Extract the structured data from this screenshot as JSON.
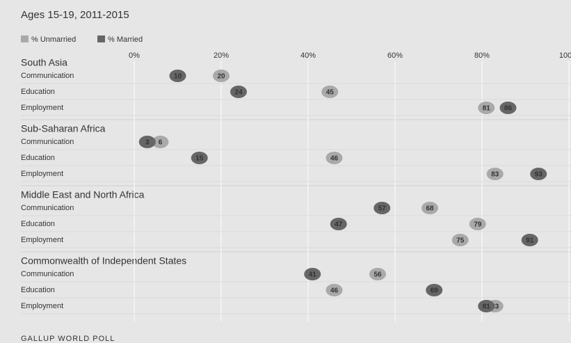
{
  "chart_data": {
    "type": "dot",
    "title": "Ages 15-19, 2011-2015",
    "source": "GALLUP WORLD POLL",
    "xlim": [
      0,
      100
    ],
    "xticks": [
      {
        "value": 0,
        "label": "0%"
      },
      {
        "value": 20,
        "label": "20%"
      },
      {
        "value": 40,
        "label": "40%"
      },
      {
        "value": 60,
        "label": "60%"
      },
      {
        "value": 80,
        "label": "80%"
      },
      {
        "value": 100,
        "label": "100%"
      }
    ],
    "grid": true,
    "groups": [
      {
        "name": "South Asia",
        "categories": [
          "Communication",
          "Education",
          "Employment"
        ]
      },
      {
        "name": "Sub-Saharan Africa",
        "categories": [
          "Communication",
          "Education",
          "Employment"
        ]
      },
      {
        "name": "Middle East and North Africa",
        "categories": [
          "Communication",
          "Education",
          "Employment"
        ]
      },
      {
        "name": "Commonwealth of Independent States",
        "categories": [
          "Communication",
          "Education",
          "Employment"
        ]
      }
    ],
    "series": [
      {
        "name": "% Unmarried",
        "color": "#a9a9a9",
        "values": [
          20,
          45,
          81,
          6,
          46,
          83,
          68,
          79,
          75,
          56,
          46,
          83
        ]
      },
      {
        "name": "% Married",
        "color": "#666666",
        "values": [
          10,
          24,
          86,
          3,
          15,
          93,
          57,
          47,
          91,
          41,
          69,
          81
        ]
      }
    ]
  }
}
